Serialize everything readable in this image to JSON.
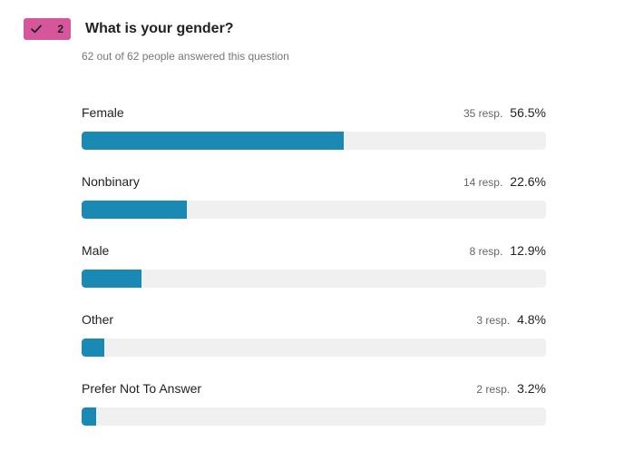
{
  "badge": {
    "number": "2",
    "icon": "check-icon",
    "color": "#d6569c"
  },
  "question": {
    "title": "What is your gender?",
    "subtitle": "62 out of 62 people answered this question"
  },
  "colors": {
    "bar": "#1a89b4",
    "track": "#f0f0f0"
  },
  "chart_data": {
    "type": "bar",
    "orientation": "horizontal",
    "categories": [
      "Female",
      "Nonbinary",
      "Male",
      "Other",
      "Prefer Not To Answer"
    ],
    "responses": [
      35,
      14,
      8,
      3,
      2
    ],
    "response_labels": [
      "35 resp.",
      "14 resp.",
      "8 resp.",
      "3 resp.",
      "2 resp."
    ],
    "values": [
      56.5,
      22.6,
      12.9,
      4.8,
      3.2
    ],
    "value_labels": [
      "56.5%",
      "22.6%",
      "12.9%",
      "4.8%",
      "3.2%"
    ],
    "xlim": [
      0,
      100
    ]
  }
}
